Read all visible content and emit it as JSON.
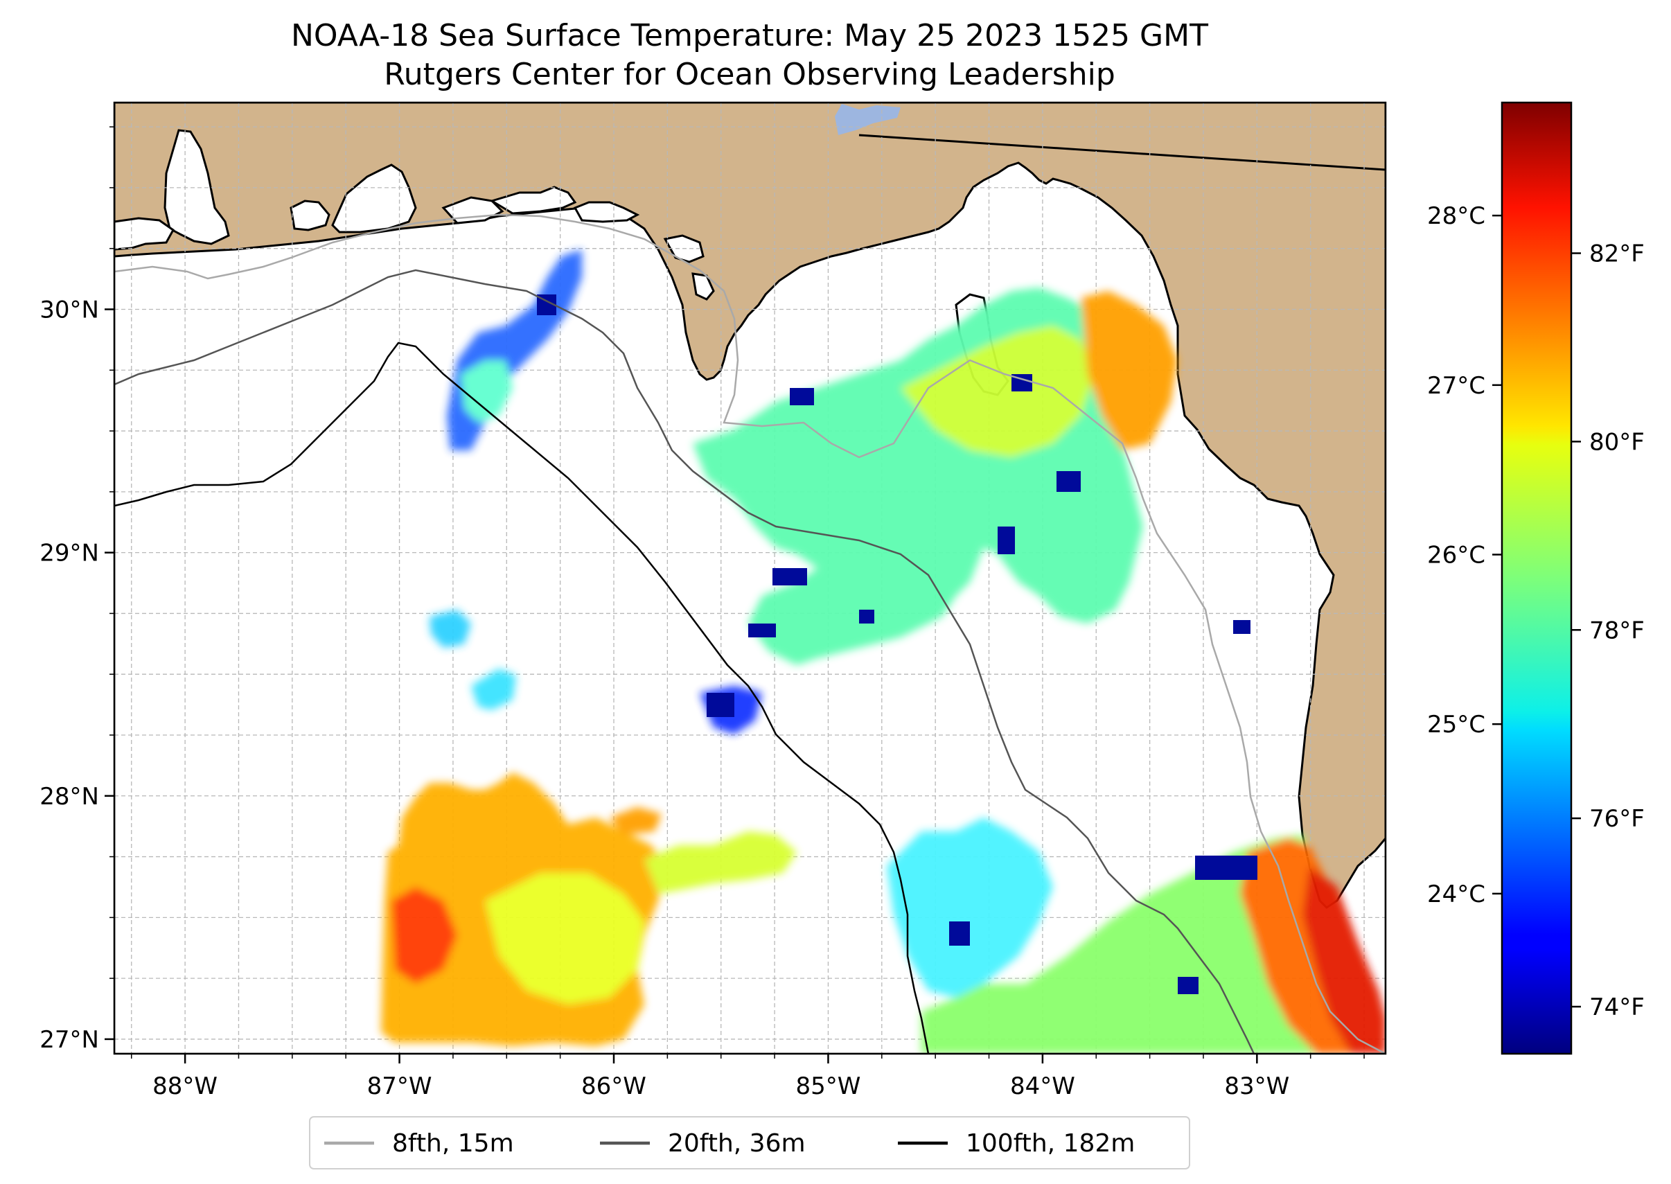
{
  "title_line1": "NOAA-18 Sea Surface Temperature: May 25 2023 1525 GMT",
  "title_line2": "Rutgers Center for Ocean Observing Leadership",
  "map": {
    "lon_range": [
      -88.33,
      -82.4
    ],
    "lat_range": [
      26.94,
      30.85
    ],
    "land_color": "#D2B48C",
    "lake_color": "#9DB6E0",
    "lon_ticks": [
      {
        "value": -88,
        "label": "88°W"
      },
      {
        "value": -87,
        "label": "87°W"
      },
      {
        "value": -86,
        "label": "86°W"
      },
      {
        "value": -85,
        "label": "85°W"
      },
      {
        "value": -84,
        "label": "84°W"
      },
      {
        "value": -83,
        "label": "83°W"
      }
    ],
    "lat_ticks": [
      {
        "value": 27,
        "label": "27°N"
      },
      {
        "value": 28,
        "label": "28°N"
      },
      {
        "value": 29,
        "label": "29°N"
      },
      {
        "value": 30,
        "label": "30°N"
      }
    ],
    "gridlines": true,
    "sst_colormap": "jet"
  },
  "colorbar": {
    "range_F": [
      73.5,
      83.6
    ],
    "celsius_ticks": [
      {
        "value": 24,
        "label": "24°C"
      },
      {
        "value": 25,
        "label": "25°C"
      },
      {
        "value": 26,
        "label": "26°C"
      },
      {
        "value": 27,
        "label": "27°C"
      },
      {
        "value": 28,
        "label": "28°C"
      }
    ],
    "fahrenheit_ticks": [
      {
        "value": 74,
        "label": "74°F"
      },
      {
        "value": 76,
        "label": "76°F"
      },
      {
        "value": 78,
        "label": "78°F"
      },
      {
        "value": 80,
        "label": "80°F"
      },
      {
        "value": 82,
        "label": "82°F"
      }
    ]
  },
  "legend": {
    "placement": "bottom-center",
    "items": [
      {
        "label": "8fth, 15m",
        "color": "#A9A9A9"
      },
      {
        "label": "20fth, 36m",
        "color": "#555555"
      },
      {
        "label": "100fth, 182m",
        "color": "#000000"
      }
    ]
  }
}
